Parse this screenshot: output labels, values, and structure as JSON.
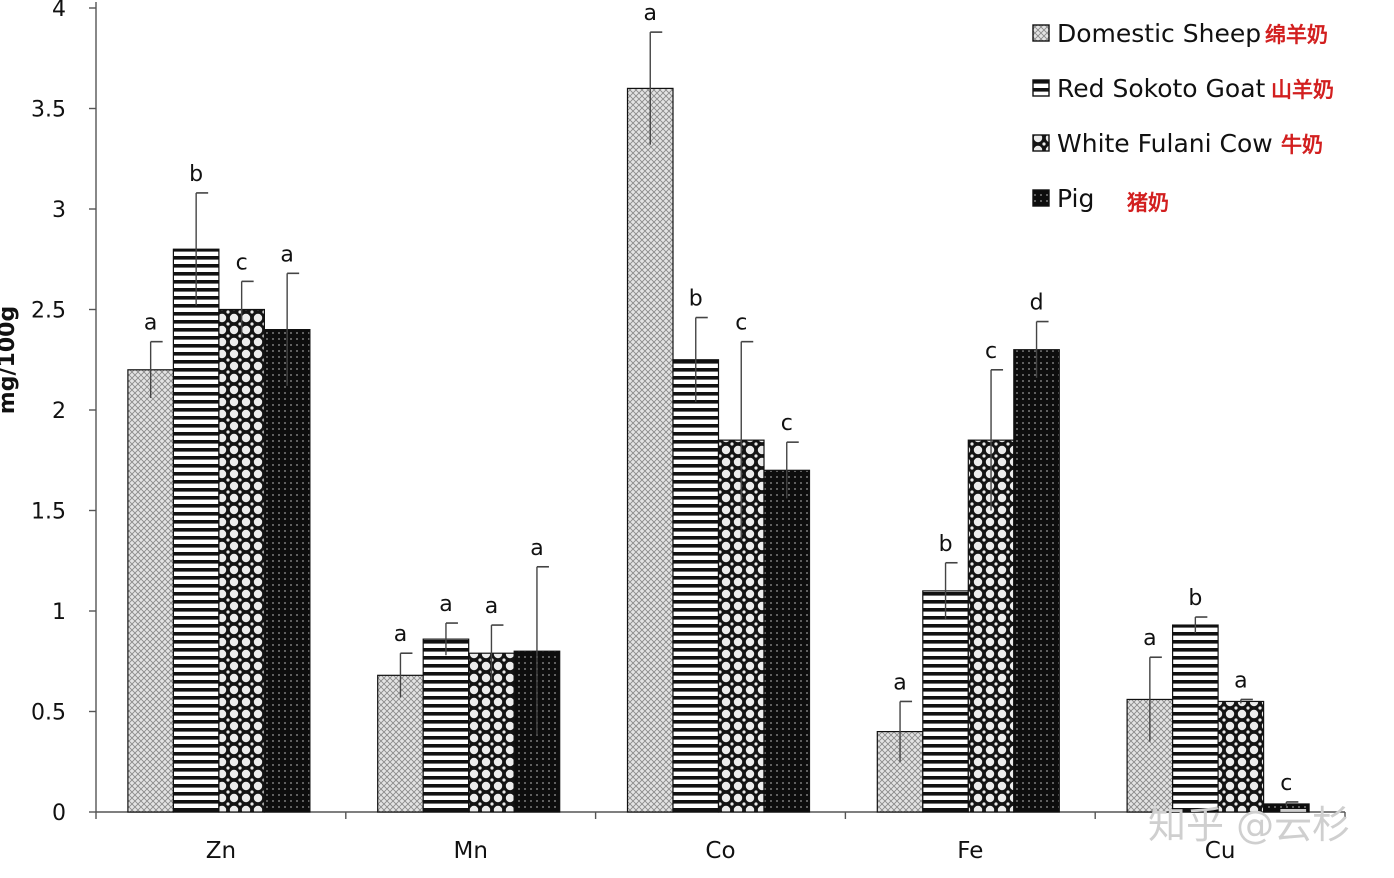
{
  "chart_data": {
    "type": "bar",
    "title": "",
    "xlabel": "",
    "ylabel": "mg/100g",
    "ylim": [
      0,
      4
    ],
    "yticks": [
      "0",
      "0.5",
      "1",
      "1.5",
      "2",
      "2.5",
      "3",
      "3.5",
      "4"
    ],
    "categories": [
      "Zn",
      "Mn",
      "Co",
      "Fe",
      "Cu"
    ],
    "legend_position": "top-right",
    "grid": false,
    "series": [
      {
        "name": "Domestic Sheep",
        "name_cn": "绵羊奶",
        "pattern": "crosshatch",
        "values": [
          2.2,
          0.68,
          3.6,
          0.4,
          0.56
        ],
        "errors": [
          0.14,
          0.11,
          0.28,
          0.15,
          0.21
        ],
        "letters": [
          "a",
          "a",
          "a",
          "a",
          "a"
        ]
      },
      {
        "name": "Red Sokoto Goat",
        "name_cn": "山羊奶",
        "pattern": "horizontal-lines",
        "values": [
          2.8,
          0.86,
          2.25,
          1.1,
          0.93
        ],
        "errors": [
          0.28,
          0.08,
          0.21,
          0.14,
          0.04
        ],
        "letters": [
          "b",
          "a",
          "b",
          "b",
          "b"
        ]
      },
      {
        "name": "White Fulani Cow",
        "name_cn": "牛奶",
        "pattern": "circles",
        "values": [
          2.5,
          0.79,
          1.85,
          1.85,
          0.55
        ],
        "errors": [
          0.14,
          0.14,
          0.49,
          0.35,
          0.01
        ],
        "letters": [
          "c",
          "a",
          "c",
          "c",
          "a"
        ]
      },
      {
        "name": "Pig",
        "name_cn": "猪奶",
        "pattern": "dark-dots",
        "values": [
          2.4,
          0.8,
          1.7,
          2.3,
          0.04
        ],
        "errors": [
          0.28,
          0.42,
          0.14,
          0.14,
          0.01
        ],
        "letters": [
          "a",
          "a",
          "c",
          "d",
          "c"
        ]
      }
    ]
  },
  "watermark": "知乎 @云杉"
}
